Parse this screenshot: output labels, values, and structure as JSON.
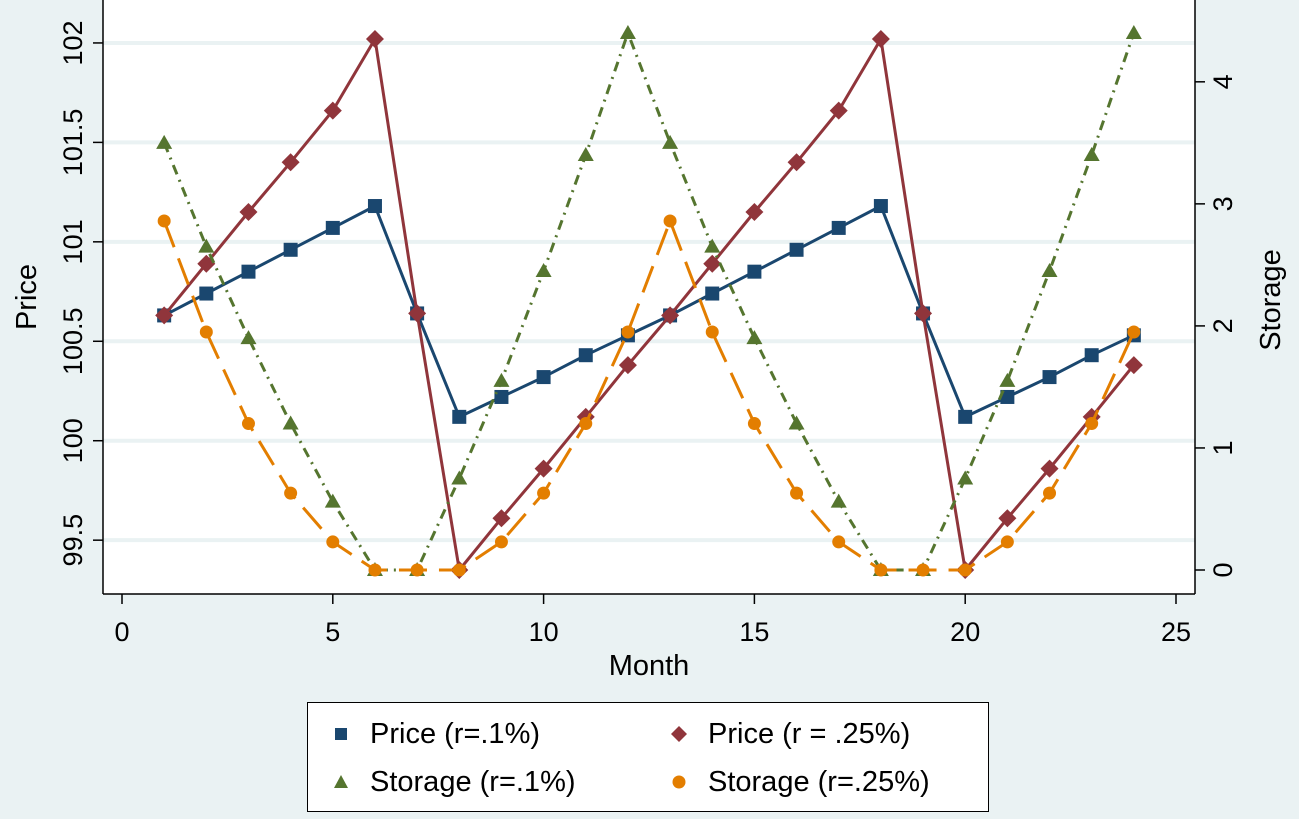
{
  "chart_data": {
    "type": "line",
    "title": "",
    "xlabel": "Month",
    "ylabel": "Price",
    "y2label": "Storage",
    "xlim": [
      0,
      25
    ],
    "ylim": [
      99.35,
      102.05
    ],
    "y2lim": [
      0,
      4.4
    ],
    "xticks": [
      0,
      5,
      10,
      15,
      20,
      25
    ],
    "yticks": [
      99.5,
      100,
      100.5,
      101,
      101.5,
      102
    ],
    "ytick_labels": [
      "99.5",
      "100",
      "100.5",
      "101",
      "101.5",
      "102"
    ],
    "y2ticks": [
      0,
      1,
      2,
      3,
      4
    ],
    "grid": true,
    "legend_position": "bottom",
    "x": [
      1,
      2,
      3,
      4,
      5,
      6,
      7,
      8,
      9,
      10,
      11,
      12,
      13,
      14,
      15,
      16,
      17,
      18,
      19,
      20,
      21,
      22,
      23,
      24
    ],
    "series": [
      {
        "name": "Price (r=.1%)",
        "axis": "left",
        "color": "#1a476f",
        "marker": "square",
        "dash": "solid",
        "values": [
          100.63,
          100.74,
          100.85,
          100.96,
          101.07,
          101.18,
          100.64,
          100.12,
          100.22,
          100.32,
          100.43,
          100.53,
          100.63,
          100.74,
          100.85,
          100.96,
          101.07,
          101.18,
          100.64,
          100.12,
          100.22,
          100.32,
          100.43,
          100.53
        ]
      },
      {
        "name": "Price (r = .25%)",
        "axis": "left",
        "color": "#90353b",
        "marker": "diamond",
        "dash": "solid",
        "values": [
          100.63,
          100.89,
          101.15,
          101.4,
          101.66,
          102.02,
          100.64,
          99.35,
          99.61,
          99.86,
          100.12,
          100.38,
          100.63,
          100.89,
          101.15,
          101.4,
          101.66,
          102.02,
          100.64,
          99.35,
          99.61,
          99.86,
          100.12,
          100.38
        ]
      },
      {
        "name": "Storage (r=.1%)",
        "axis": "right",
        "color": "#55752f",
        "marker": "triangle",
        "dash": "dashdot",
        "values": [
          3.5,
          2.65,
          1.9,
          1.2,
          0.56,
          0,
          0,
          0.75,
          1.55,
          2.45,
          3.4,
          4.4,
          3.5,
          2.65,
          1.9,
          1.2,
          0.56,
          0,
          0,
          0.75,
          1.55,
          2.45,
          3.4,
          4.4
        ]
      },
      {
        "name": "Storage (r=.25%)",
        "axis": "right",
        "color": "#e37e00",
        "marker": "circle",
        "dash": "longdash",
        "values": [
          2.86,
          1.95,
          1.2,
          0.63,
          0.23,
          0,
          0,
          0,
          0.23,
          0.63,
          1.2,
          1.95,
          2.86,
          1.95,
          1.2,
          0.63,
          0.23,
          0,
          0,
          0,
          0.23,
          0.63,
          1.2,
          1.95
        ]
      }
    ]
  },
  "legend": {
    "items": [
      "Price (r=.1%)",
      "Price (r = .25%)",
      "Storage (r=.1%)",
      "Storage (r=.25%)"
    ]
  }
}
